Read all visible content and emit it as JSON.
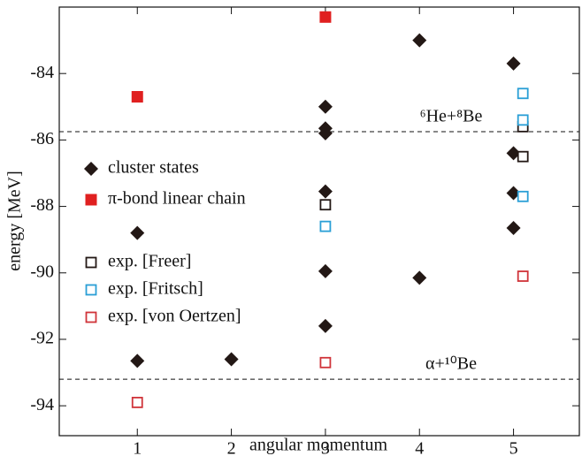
{
  "chart_data": {
    "type": "scatter",
    "xlabel": "angular momentum",
    "ylabel": "energy [MeV]",
    "xlim": [
      0.17,
      5.7
    ],
    "ylim": [
      -94.9,
      -82
    ],
    "xticks": [
      1,
      2,
      3,
      4,
      5
    ],
    "yticks": [
      -84,
      -86,
      -88,
      -90,
      -92,
      -94
    ],
    "hlines": [
      {
        "value": -85.75,
        "label": "⁶He+⁸Be"
      },
      {
        "value": -93.2,
        "label": "α+¹⁰Be"
      }
    ],
    "series": [
      {
        "name": "cluster states",
        "color": "#231815",
        "marker": "diamond",
        "x": [
          1,
          1,
          2,
          3,
          3,
          3,
          3,
          3,
          3,
          4,
          4,
          5,
          5,
          5,
          5
        ],
        "values": [
          -88.8,
          -92.65,
          -92.6,
          -85.0,
          -85.65,
          -85.8,
          -87.55,
          -89.95,
          -91.6,
          -83.0,
          -90.15,
          -83.7,
          -86.4,
          -87.6,
          -88.65
        ]
      },
      {
        "name": "π-bond linear chain",
        "color": "#e02020",
        "marker": "filled-square",
        "x": [
          1,
          3
        ],
        "values": [
          -84.7,
          -82.3
        ]
      },
      {
        "name": "exp. [Freer]",
        "color": "#231815",
        "marker": "open-square",
        "x": [
          3,
          5.1,
          5.1
        ],
        "values": [
          -87.95,
          -85.6,
          -86.5
        ]
      },
      {
        "name": "exp. [Fritsch]",
        "color": "#2a9fd6",
        "marker": "open-square",
        "x": [
          3,
          5.1,
          5.1,
          5.1
        ],
        "values": [
          -88.6,
          -84.6,
          -85.4,
          -87.7
        ]
      },
      {
        "name": "exp. [von Oertzen]",
        "color": "#d0343a",
        "marker": "open-square",
        "x": [
          1,
          3,
          5.1
        ],
        "values": [
          -93.9,
          -92.7,
          -90.1
        ]
      }
    ]
  }
}
